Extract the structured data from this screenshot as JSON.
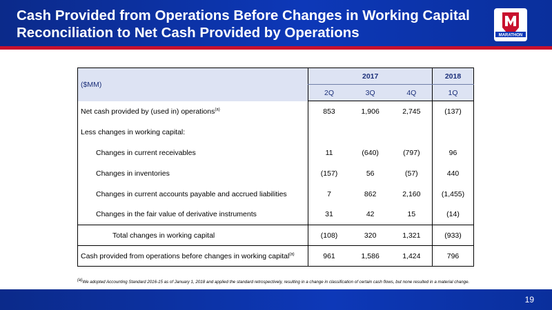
{
  "header": {
    "title": "Cash Provided from Operations Before Changes in Working Capital Reconciliation to Net Cash Provided by Operations",
    "logo_text": "MARATHON",
    "logo_icon": "marathon-logo-icon",
    "colors": {
      "header_blue": "#0d38b8",
      "accent_red": "#c8102e",
      "table_header_bg": "#dde3f3"
    }
  },
  "table": {
    "unit_label": "($MM)",
    "years": [
      "2017",
      "2018"
    ],
    "quarters": [
      "2Q",
      "3Q",
      "4Q",
      "1Q"
    ],
    "rows": [
      {
        "label": "Net cash provided by (used in) operations",
        "note": "(a)",
        "values": [
          "853",
          "1,906",
          "2,745",
          "(137)"
        ]
      },
      {
        "label": "Less changes in working capital:",
        "note": "",
        "values": [
          "",
          "",
          "",
          ""
        ]
      },
      {
        "label": "Changes in current receivables",
        "note": "",
        "values": [
          "11",
          "(640)",
          "(797)",
          "96"
        ]
      },
      {
        "label": "Changes in inventories",
        "note": "",
        "values": [
          "(157)",
          "56",
          "(57)",
          "440"
        ]
      },
      {
        "label": "Changes in current accounts payable and accrued liabilities",
        "note": "",
        "values": [
          "7",
          "862",
          "2,160",
          "(1,455)"
        ]
      },
      {
        "label": "Changes in the fair value of derivative instruments",
        "note": "",
        "values": [
          "31",
          "42",
          "15",
          "(14)"
        ]
      },
      {
        "label": "Total changes in working capital",
        "note": "",
        "values": [
          "(108)",
          "320",
          "1,321",
          "(933)"
        ]
      },
      {
        "label": "Cash provided from operations before changes in working capital",
        "note": "(a)",
        "values": [
          "961",
          "1,586",
          "1,424",
          "796"
        ]
      }
    ]
  },
  "footnote": {
    "marker": "(a)",
    "text": "We adopted Accounting Standard 2016-15 as of January 1, 2018 and applied the standard retrospectively, resulting in a change in classification of certain cash flows, but none resulted in a material change."
  },
  "footer": {
    "page_number": "19"
  }
}
